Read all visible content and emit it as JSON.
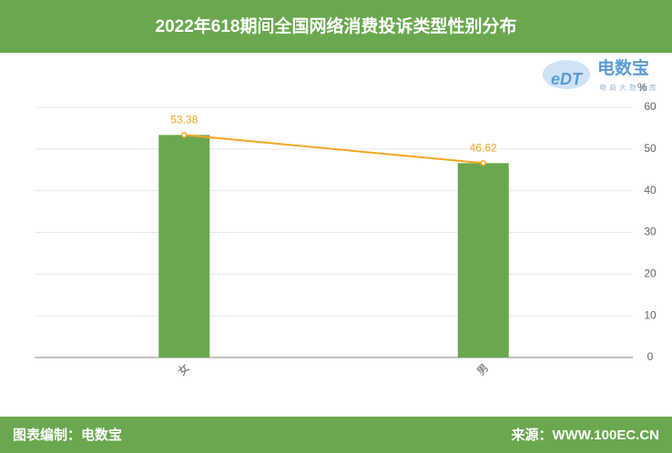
{
  "chart_data": {
    "type": "bar",
    "title": "2022年618期间全国网络消费投诉类型性别分布",
    "categories": [
      "女",
      "男"
    ],
    "values": [
      53.38,
      46.62
    ],
    "color": "#6aa84f",
    "line_overlay": true,
    "line_color": "#f5a623",
    "y_unit": "%",
    "ylim": [
      0,
      60
    ],
    "yticks": [
      0,
      10,
      20,
      30,
      40,
      50,
      60
    ],
    "grid": true,
    "logo": {
      "mark": "eDT",
      "name": "电数宝",
      "tagline": "电商大数据库"
    },
    "footer": {
      "left": "图表编制：电数宝",
      "right": "来源：WWW.100EC.CN"
    }
  }
}
